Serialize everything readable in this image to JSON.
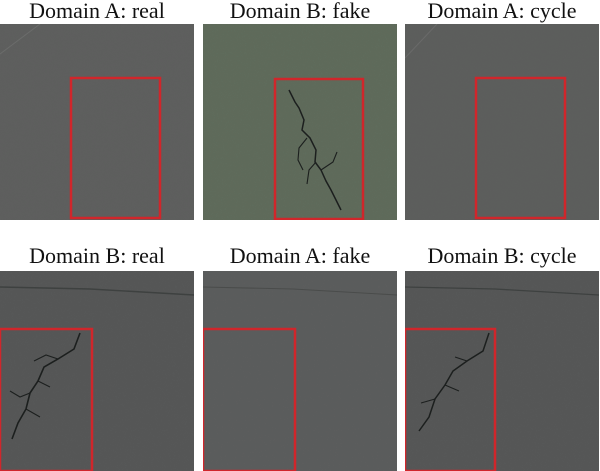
{
  "panels": [
    {
      "label": "Domain A: real"
    },
    {
      "label": "Domain B: fake"
    },
    {
      "label": "Domain A: cycle"
    },
    {
      "label": "Domain B: real"
    },
    {
      "label": "Domain A: fake"
    },
    {
      "label": "Domain B: cycle"
    }
  ],
  "colors": {
    "background": "#ffffff",
    "highlight_box": "#d0262b",
    "asphalt_gray": "#5d5e5d",
    "asphalt_green": "#5e6a5a",
    "crack": "#1c1f1e"
  }
}
